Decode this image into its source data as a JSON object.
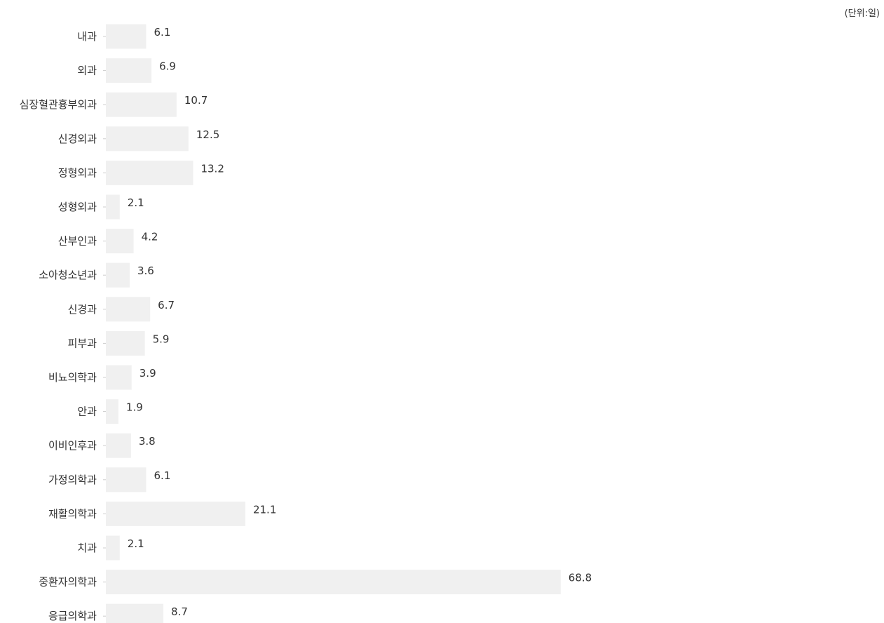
{
  "chart_data": {
    "type": "bar",
    "orientation": "horizontal",
    "unit_label": "(단위:일)",
    "categories": [
      "내과",
      "외과",
      "심장혈관흉부외과",
      "신경외과",
      "정형외과",
      "성형외과",
      "산부인과",
      "소아청소년과",
      "신경과",
      "피부과",
      "비뇨의학과",
      "안과",
      "이비인후과",
      "가정의학과",
      "재활의학과",
      "치과",
      "중환자의학과",
      "응급의학과"
    ],
    "values": [
      6.1,
      6.9,
      10.7,
      12.5,
      13.2,
      2.1,
      4.2,
      3.6,
      6.7,
      5.9,
      3.9,
      1.9,
      3.8,
      6.1,
      21.1,
      2.1,
      68.8,
      8.7
    ],
    "value_labels": [
      "6.1",
      "6.9",
      "10.7",
      "12.5",
      "13.2",
      "2.1",
      "4.2",
      "3.6",
      "6.7",
      "5.9",
      "3.9",
      "1.9",
      "3.8",
      "6.1",
      "21.1",
      "2.1",
      "68.8",
      "8.7"
    ],
    "bar_color": "#f0f0f0",
    "axis_color": "#cccccc",
    "grid": false,
    "legend": "none"
  }
}
